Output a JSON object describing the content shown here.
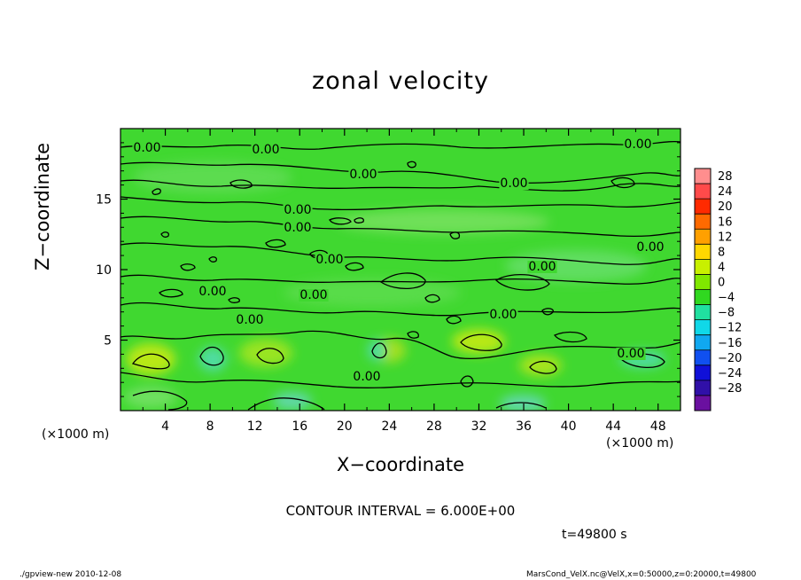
{
  "chart_data": {
    "type": "heatmap",
    "title": "zonal velocity",
    "xlabel": "X−coordinate",
    "ylabel": "Z−coordinate",
    "x_unit_left": "(×1000 m)",
    "x_unit_right": "(×1000 m)",
    "xlim": [
      0,
      50
    ],
    "ylim": [
      0,
      20
    ],
    "x_ticks": [
      4,
      8,
      12,
      16,
      20,
      24,
      28,
      32,
      36,
      40,
      44,
      48
    ],
    "y_ticks": [
      5,
      10,
      15
    ],
    "colorbar": {
      "levels": [
        "28",
        "24",
        "20",
        "16",
        "12",
        "8",
        "4",
        "0",
        "−4",
        "−8",
        "−12",
        "−16",
        "−20",
        "−24",
        "−28"
      ],
      "colors": [
        "#ff8e8e",
        "#ff4a4a",
        "#ff2a00",
        "#ff6a00",
        "#ffa000",
        "#ffd800",
        "#c8f000",
        "#80e800",
        "#30d820",
        "#20e0a0",
        "#10d8e8",
        "#10a8f0",
        "#1050f0",
        "#1010d8",
        "#3010a8",
        "#6a10a0"
      ]
    },
    "contour_labels": [
      "0.00",
      "0.00",
      "0.00",
      "0.00",
      "0.00",
      "0.00",
      "0.00",
      "0.00",
      "0.00",
      "0.00",
      "0.00",
      "0.00",
      "0.00",
      "0.00",
      "0.00",
      "0.00"
    ],
    "contour_interval": "CONTOUR INTERVAL = 6.000E+00",
    "time": "t=49800 s"
  },
  "footer": {
    "left": "./gpview-new   2010-12-08",
    "right": "MarsCond_VelX.nc@VelX,x=0:50000,z=0:20000,t=49800"
  }
}
